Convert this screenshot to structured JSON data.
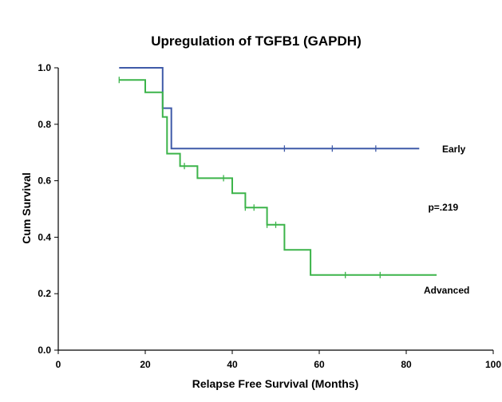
{
  "chart_data": {
    "type": "line",
    "title": "Upregulation of TGFB1 (GAPDH)",
    "xlabel": "Relapse Free Survival (Months)",
    "ylabel": "Cum Survival",
    "xlim": [
      0,
      100
    ],
    "ylim": [
      0,
      1
    ],
    "xticks": [
      0,
      20,
      40,
      60,
      80,
      100
    ],
    "yticks": [
      0.0,
      0.2,
      0.4,
      0.6,
      0.8,
      1.0
    ],
    "xtick_labels": [
      "0",
      "20",
      "40",
      "60",
      "80",
      "100"
    ],
    "ytick_labels": [
      "0.0",
      "0.2",
      "0.4",
      "0.6",
      "0.8",
      "1.0"
    ],
    "step": true,
    "grid": false,
    "series": [
      {
        "name": "Early",
        "color": "#3f5aa8",
        "x": [
          14,
          24,
          24,
          26,
          26,
          83
        ],
        "y": [
          1.0,
          1.0,
          0.857,
          0.857,
          0.714,
          0.714
        ],
        "censored_x": [
          52,
          63,
          73
        ]
      },
      {
        "name": "Advanced",
        "color": "#3cb44a",
        "x": [
          14,
          20,
          20,
          24,
          24,
          25,
          25,
          28,
          28,
          32,
          32,
          40,
          40,
          43,
          43,
          48,
          48,
          52,
          52,
          58,
          58,
          87
        ],
        "y": [
          0.957,
          0.957,
          0.913,
          0.913,
          0.826,
          0.826,
          0.696,
          0.696,
          0.652,
          0.652,
          0.609,
          0.609,
          0.556,
          0.556,
          0.505,
          0.505,
          0.444,
          0.444,
          0.355,
          0.355,
          0.266,
          0.266
        ],
        "censored_x": [
          14,
          29,
          38,
          43,
          45,
          48,
          50,
          66,
          74
        ]
      }
    ],
    "annotations": [
      {
        "text": "p=.219",
        "x": 88.5,
        "y": 0.505
      }
    ]
  }
}
